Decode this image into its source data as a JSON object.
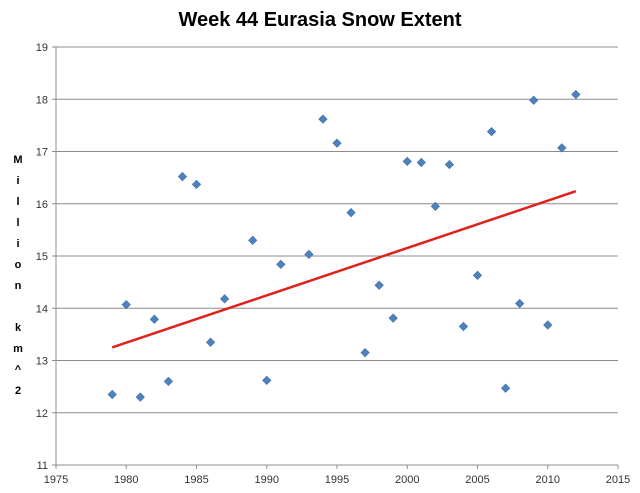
{
  "chart_data": {
    "type": "scatter",
    "title": "Week 44 Eurasia Snow Extent",
    "xlabel": "",
    "ylabel": "Million km^2",
    "ylabel_chars": [
      "M",
      "i",
      "l",
      "l",
      "i",
      "o",
      "n",
      "",
      "k",
      "m",
      "^",
      "2"
    ],
    "xlim": [
      1975,
      2015
    ],
    "ylim": [
      11,
      19
    ],
    "xticks": [
      1975,
      1980,
      1985,
      1990,
      1995,
      2000,
      2005,
      2010,
      2015
    ],
    "yticks": [
      11,
      12,
      13,
      14,
      15,
      16,
      17,
      18,
      19
    ],
    "grid": "horizontal",
    "marker": "diamond",
    "marker_color": "#4f81bd",
    "series": [
      {
        "points": [
          [
            1979,
            12.35
          ],
          [
            1980,
            14.07
          ],
          [
            1981,
            12.3
          ],
          [
            1982,
            13.79
          ],
          [
            1983,
            12.6
          ],
          [
            1984,
            16.52
          ],
          [
            1985,
            16.37
          ],
          [
            1986,
            13.35
          ],
          [
            1987,
            14.18
          ],
          [
            1989,
            15.3
          ],
          [
            1990,
            12.62
          ],
          [
            1991,
            14.84
          ],
          [
            1993,
            15.03
          ],
          [
            1994,
            17.62
          ],
          [
            1995,
            17.16
          ],
          [
            1996,
            15.83
          ],
          [
            1997,
            13.15
          ],
          [
            1998,
            14.44
          ],
          [
            1999,
            13.81
          ],
          [
            2000,
            16.81
          ],
          [
            2001,
            16.79
          ],
          [
            2002,
            15.95
          ],
          [
            2003,
            16.75
          ],
          [
            2004,
            13.65
          ],
          [
            2005,
            14.63
          ],
          [
            2006,
            17.38
          ],
          [
            2007,
            12.47
          ],
          [
            2008,
            14.09
          ],
          [
            2009,
            17.98
          ],
          [
            2010,
            13.68
          ],
          [
            2011,
            17.07
          ],
          [
            2012,
            18.09
          ]
        ]
      }
    ],
    "trendline": {
      "color": "#e0201b",
      "start": [
        1979,
        13.25
      ],
      "end": [
        2012,
        16.24
      ]
    }
  }
}
